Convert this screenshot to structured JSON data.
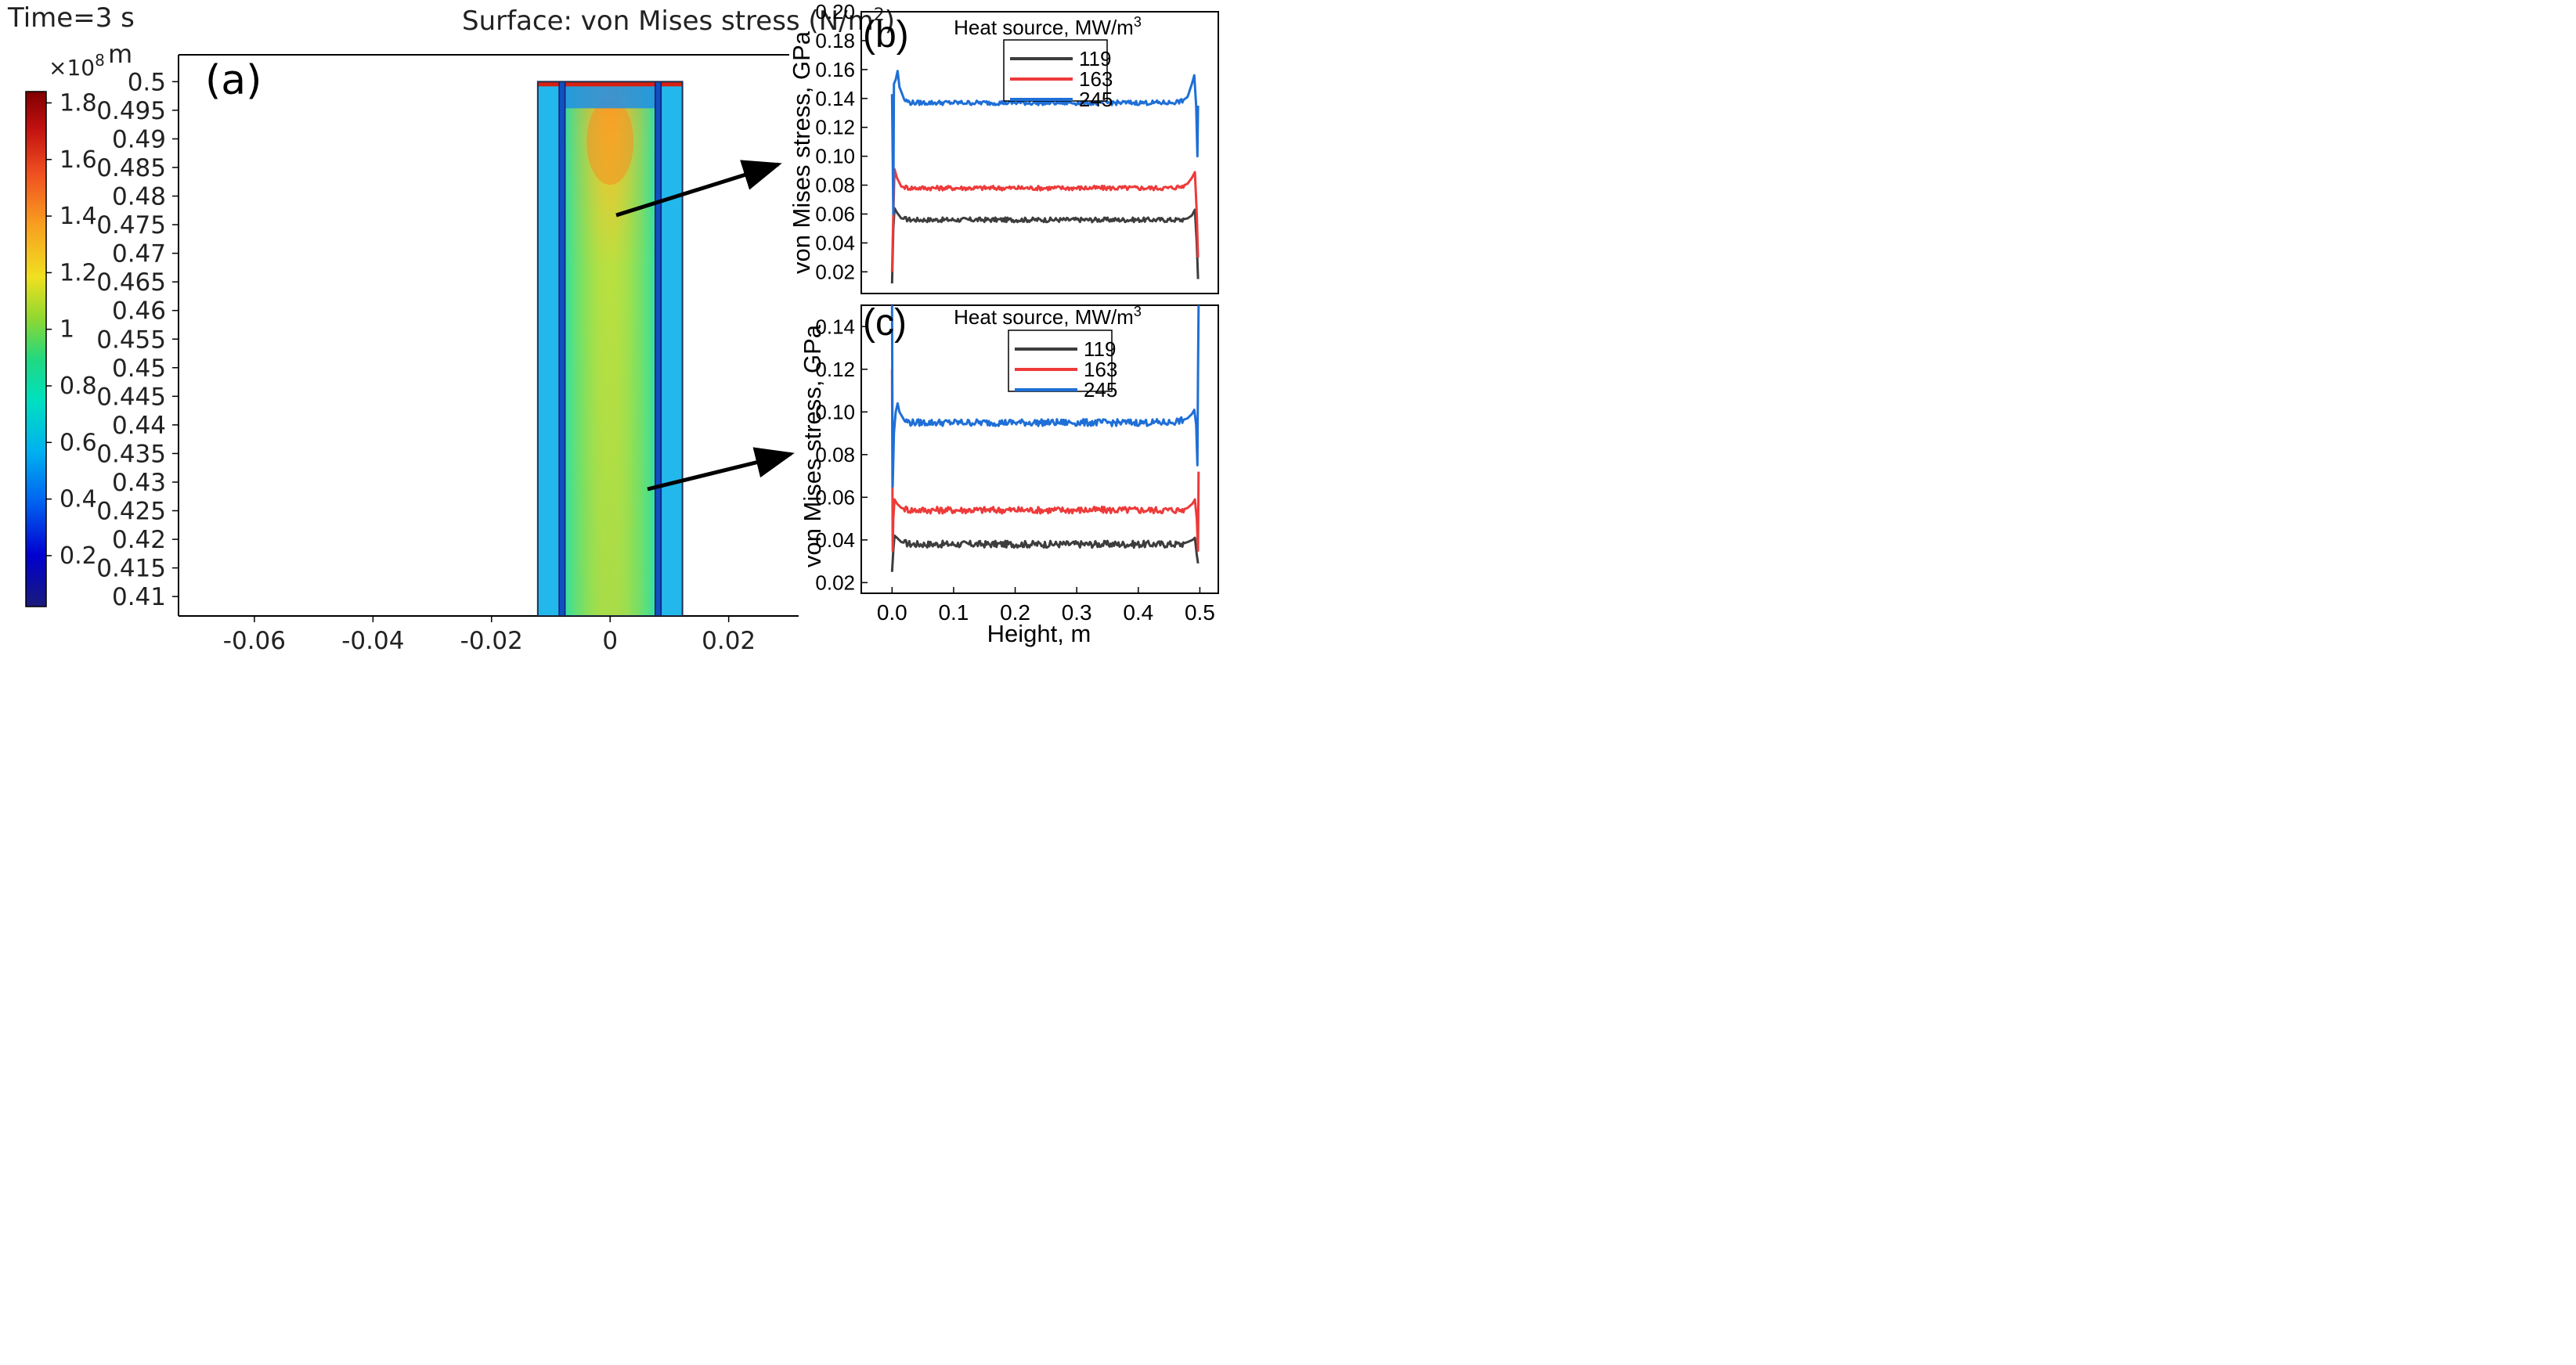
{
  "chart_data": [
    {
      "id": "a",
      "type": "heatmap",
      "panel_label": "(a)",
      "time_label": "Time=3 s",
      "title": "Surface: von Mises stress (N/m²)",
      "ylabel": "m",
      "x_ticks": [
        "-0.06",
        "-0.04",
        "-0.02",
        "0",
        "0.02"
      ],
      "x_tick_values": [
        -0.06,
        -0.04,
        -0.02,
        0,
        0.02
      ],
      "xlim": [
        -0.0728,
        0.0318
      ],
      "y_ticks": [
        "0.5",
        "0.495",
        "0.49",
        "0.485",
        "0.48",
        "0.475",
        "0.47",
        "0.465",
        "0.46",
        "0.455",
        "0.45",
        "0.445",
        "0.44",
        "0.435",
        "0.43",
        "0.425",
        "0.42",
        "0.415",
        "0.41"
      ],
      "y_tick_values": [
        0.5,
        0.495,
        0.49,
        0.485,
        0.48,
        0.475,
        0.47,
        0.465,
        0.46,
        0.455,
        0.45,
        0.445,
        0.44,
        0.435,
        0.43,
        0.425,
        0.42,
        0.415,
        0.41
      ],
      "ylim": [
        0.4066,
        0.5047
      ],
      "colorbar": {
        "multiplier": "×10",
        "exponent": "8",
        "ticks": [
          "1.8",
          "1.6",
          "1.4",
          "1.2",
          "1",
          "0.8",
          "0.6",
          "0.4",
          "0.2"
        ],
        "tick_values": [
          1.8,
          1.6,
          1.4,
          1.2,
          1.0,
          0.8,
          0.6,
          0.4,
          0.2
        ],
        "range": [
          0.02,
          1.84
        ],
        "colormap": [
          "#1a1a7a",
          "#0000d0",
          "#0060f0",
          "#00b0f0",
          "#00e0c0",
          "#20d880",
          "#90d830",
          "#f0e020",
          "#f8a020",
          "#f05020",
          "#c01010",
          "#800000"
        ]
      },
      "domain": {
        "x_range": [
          -0.0122,
          0.0122
        ],
        "y_range": [
          0.4066,
          0.5
        ],
        "core_x_range": [
          -0.0081,
          0.0081
        ],
        "inner_lines_x": [
          -0.0085,
          -0.0077,
          0.0077,
          0.0085
        ]
      }
    },
    {
      "id": "b",
      "type": "line",
      "panel_label": "(b)",
      "ylabel": "von Mises stress, GPa",
      "xlim": [
        -0.05,
        0.53
      ],
      "ylim": [
        0.005,
        0.2
      ],
      "y_ticks": [
        "0.20",
        "0.18",
        "0.16",
        "0.14",
        "0.12",
        "0.10",
        "0.08",
        "0.06",
        "0.04",
        "0.02"
      ],
      "y_tick_values": [
        0.2,
        0.18,
        0.16,
        0.14,
        0.12,
        0.1,
        0.08,
        0.06,
        0.04,
        0.02
      ],
      "legend_title": "Heat source, MW/m",
      "legend_title_sup": "3",
      "legend_position": "top-center",
      "series": [
        {
          "name": "119",
          "color": "#3d3d3d",
          "plateau": 0.056,
          "x": [
            0.0,
            0.002,
            0.004,
            0.008,
            0.015,
            0.03,
            0.05,
            0.1,
            0.2,
            0.3,
            0.4,
            0.45,
            0.47,
            0.48,
            0.487,
            0.492,
            0.495,
            0.497
          ],
          "y": [
            0.012,
            0.05,
            0.064,
            0.061,
            0.057,
            0.056,
            0.056,
            0.056,
            0.056,
            0.056,
            0.056,
            0.056,
            0.056,
            0.057,
            0.059,
            0.063,
            0.04,
            0.015
          ]
        },
        {
          "name": "163",
          "color": "#ee3a3a",
          "plateau": 0.078,
          "x": [
            0.0,
            0.002,
            0.004,
            0.008,
            0.015,
            0.03,
            0.05,
            0.1,
            0.2,
            0.3,
            0.4,
            0.45,
            0.47,
            0.48,
            0.487,
            0.492,
            0.495,
            0.497
          ],
          "y": [
            0.02,
            0.06,
            0.091,
            0.085,
            0.079,
            0.078,
            0.078,
            0.078,
            0.078,
            0.078,
            0.078,
            0.078,
            0.079,
            0.081,
            0.085,
            0.089,
            0.06,
            0.03
          ]
        },
        {
          "name": "245",
          "color": "#1f6fd6",
          "plateau": 0.137,
          "x": [
            0.0,
            0.002,
            0.003,
            0.006,
            0.009,
            0.012,
            0.02,
            0.03,
            0.05,
            0.1,
            0.2,
            0.3,
            0.4,
            0.45,
            0.47,
            0.48,
            0.487,
            0.491,
            0.494,
            0.496,
            0.497
          ],
          "y": [
            0.143,
            0.06,
            0.15,
            0.153,
            0.159,
            0.148,
            0.139,
            0.137,
            0.137,
            0.137,
            0.137,
            0.137,
            0.137,
            0.137,
            0.138,
            0.141,
            0.15,
            0.156,
            0.135,
            0.1,
            0.135
          ]
        }
      ]
    },
    {
      "id": "c",
      "type": "line",
      "panel_label": "(c)",
      "xlabel": "Height, m",
      "ylabel": "von Mises stress, GPa",
      "xlim": [
        -0.05,
        0.53
      ],
      "ylim": [
        0.015,
        0.15
      ],
      "x_ticks": [
        "0.0",
        "0.1",
        "0.2",
        "0.3",
        "0.4",
        "0.5"
      ],
      "x_tick_values": [
        0.0,
        0.1,
        0.2,
        0.3,
        0.4,
        0.5
      ],
      "y_ticks": [
        "0.14",
        "0.12",
        "0.10",
        "0.08",
        "0.06",
        "0.04",
        "0.02"
      ],
      "y_tick_values": [
        0.14,
        0.12,
        0.1,
        0.08,
        0.06,
        0.04,
        0.02
      ],
      "legend_title": "Heat source, MW/m",
      "legend_title_sup": "3",
      "legend_position": "top-center",
      "series": [
        {
          "name": "119",
          "color": "#3d3d3d",
          "plateau": 0.038,
          "x": [
            0.0,
            0.002,
            0.004,
            0.008,
            0.015,
            0.03,
            0.05,
            0.1,
            0.2,
            0.3,
            0.4,
            0.45,
            0.47,
            0.48,
            0.488,
            0.492,
            0.495,
            0.497
          ],
          "y": [
            0.025,
            0.035,
            0.042,
            0.041,
            0.039,
            0.038,
            0.038,
            0.038,
            0.038,
            0.038,
            0.038,
            0.038,
            0.038,
            0.039,
            0.04,
            0.041,
            0.033,
            0.029
          ]
        },
        {
          "name": "163",
          "color": "#ee3a3a",
          "plateau": 0.054,
          "x": [
            0.0,
            0.001,
            0.002,
            0.004,
            0.008,
            0.015,
            0.03,
            0.05,
            0.1,
            0.2,
            0.3,
            0.4,
            0.45,
            0.47,
            0.48,
            0.488,
            0.492,
            0.495,
            0.497,
            0.498
          ],
          "y": [
            0.12,
            0.035,
            0.05,
            0.059,
            0.057,
            0.055,
            0.054,
            0.054,
            0.054,
            0.054,
            0.054,
            0.054,
            0.054,
            0.054,
            0.055,
            0.057,
            0.059,
            0.05,
            0.035,
            0.072
          ]
        },
        {
          "name": "245",
          "color": "#1f6fd6",
          "plateau": 0.095,
          "x": [
            0.0,
            0.001,
            0.003,
            0.006,
            0.009,
            0.012,
            0.02,
            0.03,
            0.05,
            0.1,
            0.2,
            0.3,
            0.4,
            0.45,
            0.47,
            0.48,
            0.487,
            0.491,
            0.494,
            0.496,
            0.497,
            0.498
          ],
          "y": [
            0.15,
            0.065,
            0.09,
            0.1,
            0.104,
            0.1,
            0.096,
            0.095,
            0.095,
            0.095,
            0.095,
            0.095,
            0.095,
            0.095,
            0.096,
            0.097,
            0.099,
            0.101,
            0.094,
            0.075,
            0.12,
            0.15
          ]
        }
      ]
    }
  ]
}
